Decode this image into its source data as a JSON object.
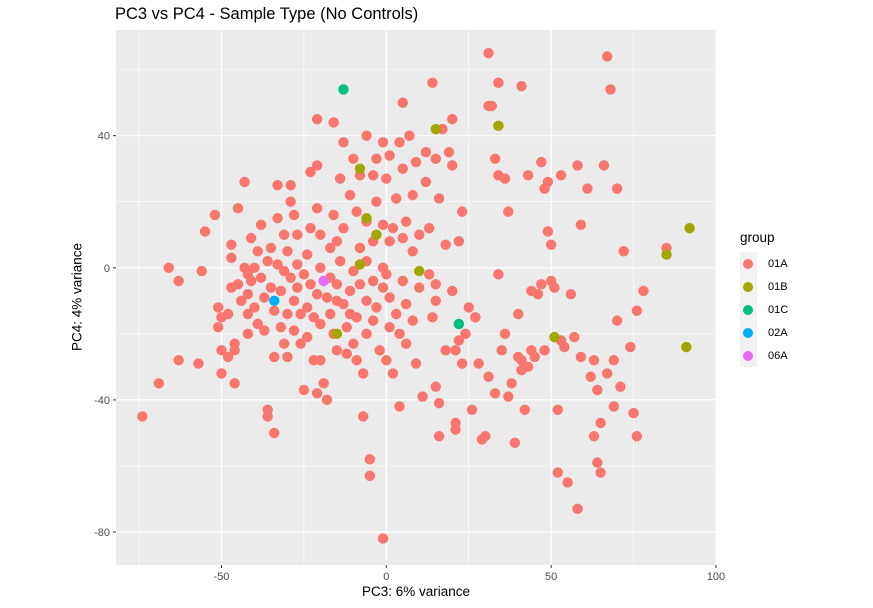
{
  "chart_data": {
    "type": "scatter",
    "title": "PC3 vs PC4 - Sample Type (No Controls)",
    "xlabel": "PC3: 6% variance",
    "ylabel": "PC4: 4% variance",
    "xlim": [
      -82,
      100
    ],
    "ylim": [
      -90,
      72
    ],
    "x_ticks": [
      -50,
      0,
      50,
      100
    ],
    "y_ticks": [
      -80,
      -40,
      0,
      40
    ],
    "grid": true,
    "legend_title": "group",
    "legend_position": "right",
    "series": [
      {
        "name": "01A",
        "color": "#F8766D",
        "points": [
          [
            -74,
            -45
          ],
          [
            -69,
            -35
          ],
          [
            -66,
            0
          ],
          [
            -63,
            -4
          ],
          [
            -63,
            -28
          ],
          [
            -57,
            -29
          ],
          [
            -56,
            -1
          ],
          [
            -55,
            11
          ],
          [
            -52,
            16
          ],
          [
            -51,
            -12
          ],
          [
            -51,
            -18
          ],
          [
            -50,
            -25
          ],
          [
            -50,
            -15
          ],
          [
            -50,
            -32
          ],
          [
            -48,
            -14
          ],
          [
            -48,
            -27
          ],
          [
            -47,
            7
          ],
          [
            -47,
            3
          ],
          [
            -47,
            -6
          ],
          [
            -46,
            -25
          ],
          [
            -46,
            -23
          ],
          [
            -46,
            -35
          ],
          [
            -45,
            18
          ],
          [
            -45,
            -5
          ],
          [
            -44,
            -10
          ],
          [
            -43,
            0
          ],
          [
            -43,
            26
          ],
          [
            -42,
            -2
          ],
          [
            -42,
            -8
          ],
          [
            -42,
            -14
          ],
          [
            -42,
            -20
          ],
          [
            -41,
            9
          ],
          [
            -41,
            -4
          ],
          [
            -40,
            0
          ],
          [
            -40,
            -12
          ],
          [
            -39,
            5
          ],
          [
            -39,
            -17
          ],
          [
            -38,
            13
          ],
          [
            -38,
            -3
          ],
          [
            -37,
            -9
          ],
          [
            -37,
            -19
          ],
          [
            -36,
            2
          ],
          [
            -36,
            -43
          ],
          [
            -36,
            -45
          ],
          [
            -35,
            6
          ],
          [
            -35,
            -6
          ],
          [
            -34,
            -13
          ],
          [
            -34,
            -27
          ],
          [
            -34,
            -50
          ],
          [
            -33,
            25
          ],
          [
            -33,
            15
          ],
          [
            -33,
            1
          ],
          [
            -32,
            -7
          ],
          [
            -32,
            -18
          ],
          [
            -31,
            10
          ],
          [
            -31,
            -1
          ],
          [
            -31,
            -23
          ],
          [
            -30,
            5
          ],
          [
            -30,
            -14
          ],
          [
            -30,
            -27
          ],
          [
            -29,
            25
          ],
          [
            -29,
            20
          ],
          [
            -29,
            -3
          ],
          [
            -28,
            16
          ],
          [
            -28,
            -10
          ],
          [
            -28,
            -19
          ],
          [
            -27,
            10
          ],
          [
            -27,
            1
          ],
          [
            -27,
            -6
          ],
          [
            -26,
            -14
          ],
          [
            -26,
            -23
          ],
          [
            -25,
            -37
          ],
          [
            -25,
            -2
          ],
          [
            -24,
            4
          ],
          [
            -24,
            -12
          ],
          [
            -24,
            -21
          ],
          [
            -23,
            29
          ],
          [
            -23,
            12
          ],
          [
            -23,
            -5
          ],
          [
            -22,
            -15
          ],
          [
            -22,
            -28
          ],
          [
            -21,
            45
          ],
          [
            -21,
            31
          ],
          [
            -21,
            18
          ],
          [
            -21,
            -38
          ],
          [
            -21,
            -8
          ],
          [
            -20,
            10
          ],
          [
            -20,
            0
          ],
          [
            -20,
            -17
          ],
          [
            -20,
            -28
          ],
          [
            -19,
            -35
          ],
          [
            -18,
            -40
          ],
          [
            -18,
            -9
          ],
          [
            -17,
            6
          ],
          [
            -17,
            -3
          ],
          [
            -17,
            -14
          ],
          [
            -16,
            44
          ],
          [
            -16,
            16
          ],
          [
            -16,
            -20
          ],
          [
            -15,
            8
          ],
          [
            -15,
            -5
          ],
          [
            -15,
            -10
          ],
          [
            -15,
            -25
          ],
          [
            -14,
            27
          ],
          [
            -14,
            2
          ],
          [
            -13,
            38
          ],
          [
            -13,
            12
          ],
          [
            -13,
            -11
          ],
          [
            -12,
            -18
          ],
          [
            -12,
            -26
          ],
          [
            -11,
            22
          ],
          [
            -11,
            -7
          ],
          [
            -11,
            -14
          ],
          [
            -10,
            33
          ],
          [
            -10,
            -1
          ],
          [
            -10,
            -23
          ],
          [
            -9,
            17
          ],
          [
            -9,
            -15
          ],
          [
            -9,
            -28
          ],
          [
            -8,
            28
          ],
          [
            -8,
            6
          ],
          [
            -8,
            -5
          ],
          [
            -7,
            -32
          ],
          [
            -7,
            -45
          ],
          [
            -6,
            40
          ],
          [
            -6,
            14
          ],
          [
            -6,
            2
          ],
          [
            -6,
            -10
          ],
          [
            -6,
            -20
          ],
          [
            -5,
            -58
          ],
          [
            -5,
            -63
          ],
          [
            -4,
            28
          ],
          [
            -4,
            8
          ],
          [
            -4,
            -4
          ],
          [
            -4,
            -16
          ],
          [
            -3,
            33
          ],
          [
            -3,
            20
          ],
          [
            -3,
            -12
          ],
          [
            -2,
            -25
          ],
          [
            -1,
            38
          ],
          [
            -1,
            13
          ],
          [
            -1,
            0
          ],
          [
            -1,
            -6
          ],
          [
            -1,
            -82
          ],
          [
            0,
            27
          ],
          [
            0,
            -2
          ],
          [
            0,
            -28
          ],
          [
            1,
            34
          ],
          [
            1,
            8
          ],
          [
            1,
            -9
          ],
          [
            1,
            -18
          ],
          [
            2,
            -32
          ],
          [
            2,
            12
          ],
          [
            3,
            21
          ],
          [
            3,
            -14
          ],
          [
            4,
            38
          ],
          [
            4,
            -20
          ],
          [
            4,
            -42
          ],
          [
            5,
            50
          ],
          [
            5,
            30
          ],
          [
            5,
            9
          ],
          [
            5,
            -4
          ],
          [
            6,
            14
          ],
          [
            6,
            -11
          ],
          [
            6,
            -23
          ],
          [
            7,
            40
          ],
          [
            8,
            22
          ],
          [
            8,
            5
          ],
          [
            8,
            -16
          ],
          [
            9,
            32
          ],
          [
            9,
            -29
          ],
          [
            10,
            10
          ],
          [
            10,
            -6
          ],
          [
            11,
            -39
          ],
          [
            12,
            35
          ],
          [
            12,
            26
          ],
          [
            13,
            12
          ],
          [
            13,
            -2
          ],
          [
            14,
            56
          ],
          [
            14,
            -15
          ],
          [
            15,
            -10
          ],
          [
            15,
            -5
          ],
          [
            15,
            -36
          ],
          [
            15,
            33
          ],
          [
            16,
            -41
          ],
          [
            16,
            -51
          ],
          [
            16,
            21
          ],
          [
            17,
            42
          ],
          [
            18,
            7
          ],
          [
            18,
            -25
          ],
          [
            19,
            35
          ],
          [
            20,
            45
          ],
          [
            20,
            31
          ],
          [
            20,
            -7
          ],
          [
            21,
            -25
          ],
          [
            21,
            -47
          ],
          [
            21,
            -49
          ],
          [
            22,
            8
          ],
          [
            22,
            -22
          ],
          [
            23,
            -29
          ],
          [
            23,
            17
          ],
          [
            24,
            -20
          ],
          [
            25,
            -12
          ],
          [
            26,
            -43
          ],
          [
            27,
            -15
          ],
          [
            28,
            -29
          ],
          [
            29,
            -52
          ],
          [
            30,
            -51
          ],
          [
            31,
            65
          ],
          [
            31,
            49
          ],
          [
            31,
            -33
          ],
          [
            32,
            49
          ],
          [
            33,
            33
          ],
          [
            33,
            -38
          ],
          [
            34,
            56
          ],
          [
            34,
            28
          ],
          [
            34,
            -2
          ],
          [
            35,
            -25
          ],
          [
            36,
            27
          ],
          [
            36,
            -20
          ],
          [
            37,
            17
          ],
          [
            37,
            -39
          ],
          [
            38,
            -35
          ],
          [
            39,
            -53
          ],
          [
            40,
            -14
          ],
          [
            40,
            -27
          ],
          [
            41,
            55
          ],
          [
            41,
            -28
          ],
          [
            41,
            -31
          ],
          [
            42,
            -43
          ],
          [
            43,
            -30
          ],
          [
            43,
            28
          ],
          [
            44,
            -7
          ],
          [
            44,
            -25
          ],
          [
            45,
            -27
          ],
          [
            46,
            -8
          ],
          [
            47,
            -5
          ],
          [
            47,
            32
          ],
          [
            48,
            24
          ],
          [
            48,
            -25
          ],
          [
            49,
            26
          ],
          [
            49,
            11
          ],
          [
            50,
            7
          ],
          [
            50,
            -4
          ],
          [
            51,
            -6
          ],
          [
            52,
            -43
          ],
          [
            52,
            -62
          ],
          [
            53,
            28
          ],
          [
            53,
            -22
          ],
          [
            54,
            -24
          ],
          [
            55,
            -65
          ],
          [
            56,
            -8
          ],
          [
            57,
            -21
          ],
          [
            58,
            31
          ],
          [
            58,
            -73
          ],
          [
            59,
            13
          ],
          [
            59,
            -27
          ],
          [
            61,
            24
          ],
          [
            62,
            -33
          ],
          [
            63,
            -51
          ],
          [
            63,
            -28
          ],
          [
            64,
            -37
          ],
          [
            64,
            -59
          ],
          [
            65,
            -62
          ],
          [
            65,
            -47
          ],
          [
            66,
            31
          ],
          [
            67,
            64
          ],
          [
            67,
            -32
          ],
          [
            68,
            54
          ],
          [
            69,
            -28
          ],
          [
            69,
            -42
          ],
          [
            70,
            -16
          ],
          [
            70,
            24
          ],
          [
            71,
            -36
          ],
          [
            72,
            5
          ],
          [
            74,
            -24
          ],
          [
            75,
            -44
          ],
          [
            76,
            -51
          ],
          [
            76,
            -13
          ],
          [
            78,
            -7
          ],
          [
            85,
            6
          ]
        ]
      },
      {
        "name": "01B",
        "color": "#A3A500",
        "points": [
          [
            -8,
            30
          ],
          [
            -6,
            15
          ],
          [
            -3,
            10
          ],
          [
            -8,
            1
          ],
          [
            -15,
            -20
          ],
          [
            10,
            -1
          ],
          [
            15,
            42
          ],
          [
            34,
            43
          ],
          [
            51,
            -21
          ],
          [
            85,
            4
          ],
          [
            91,
            -24
          ],
          [
            92,
            12
          ]
        ]
      },
      {
        "name": "01C",
        "color": "#00BF7D",
        "points": [
          [
            -13,
            54
          ],
          [
            22,
            -17
          ]
        ]
      },
      {
        "name": "02A",
        "color": "#00B0F6",
        "points": [
          [
            -34,
            -10
          ]
        ]
      },
      {
        "name": "06A",
        "color": "#E76BF3",
        "points": [
          [
            -19,
            -4
          ]
        ]
      }
    ]
  }
}
